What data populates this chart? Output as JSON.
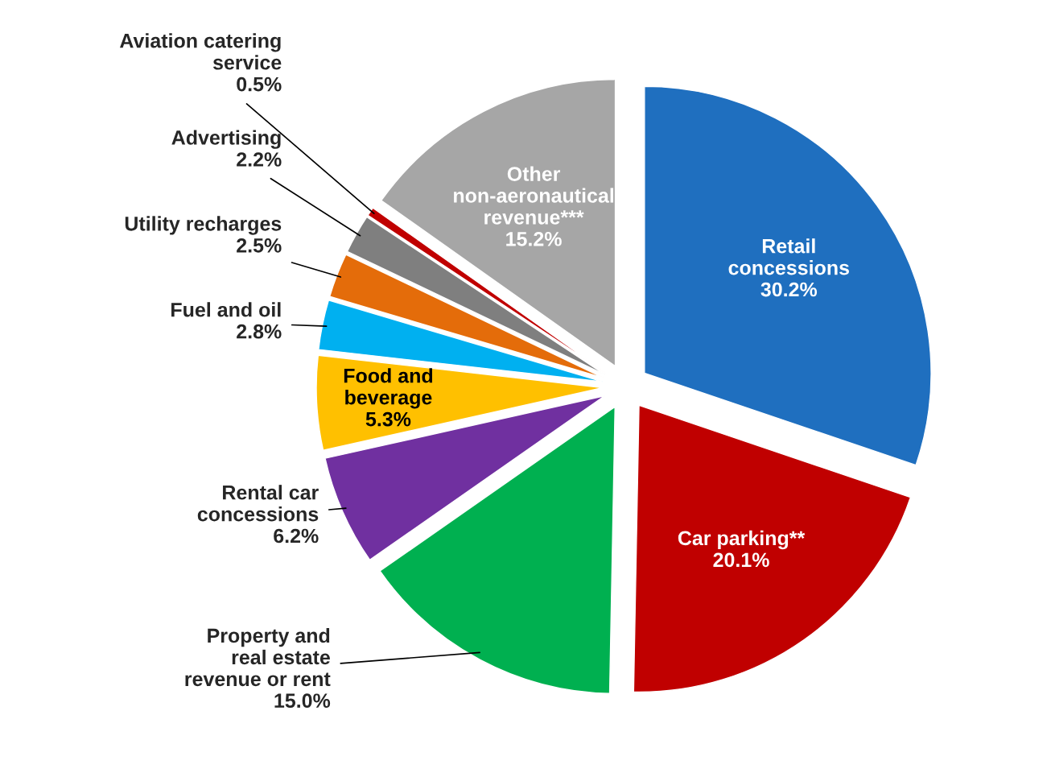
{
  "chart_data": {
    "type": "pie",
    "categories": [
      "Retail concessions",
      "Car parking**",
      "Property and real estate revenue or rent",
      "Rental car concessions",
      "Food and beverage",
      "Fuel and oil",
      "Utility recharges",
      "Advertising",
      "Aviation catering service",
      "Other non-aeronautical revenue***"
    ],
    "values": [
      30.2,
      20.1,
      15.0,
      6.2,
      5.3,
      2.8,
      2.5,
      2.2,
      0.5,
      15.2
    ],
    "value_labels": [
      "30.2%",
      "20.1%",
      "15.0%",
      "6.2%",
      "5.3%",
      "2.8%",
      "2.5%",
      "2.2%",
      "0.5%",
      "15.2%"
    ],
    "colors": [
      "#1f6fbf",
      "#c00000",
      "#00b050",
      "#7030a0",
      "#ffc000",
      "#00b0f0",
      "#e46c0a",
      "#7f7f7f",
      "#c00000",
      "#a6a6a6"
    ],
    "legend": false
  }
}
